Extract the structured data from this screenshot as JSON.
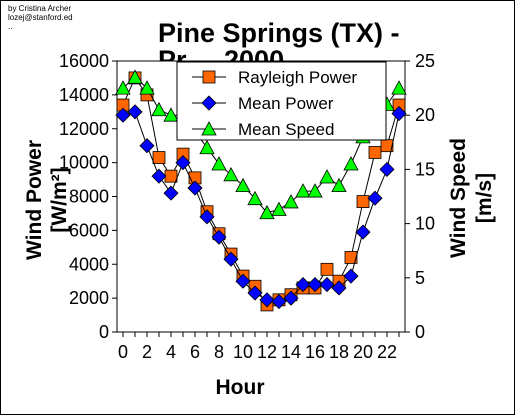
{
  "credit": {
    "line1": "by Cristina Archer",
    "line2": "lozej@stanford.ed",
    "line3": ".."
  },
  "chart_data": {
    "type": "line",
    "title": "Pine Springs (TX) - ",
    "title_overlapped": "Pr ... 2000",
    "xlabel": "Hour",
    "ylabel_left_line1": "Wind Power",
    "ylabel_left_line2": "[W/m²]",
    "ylabel_right_line1": "Wind Speed",
    "ylabel_right_line2": "[m/s]",
    "x": [
      0,
      1,
      2,
      3,
      4,
      5,
      6,
      7,
      8,
      9,
      10,
      11,
      12,
      13,
      14,
      15,
      16,
      17,
      18,
      19,
      20,
      21,
      22,
      23
    ],
    "x_ticks": [
      0,
      2,
      4,
      6,
      8,
      10,
      12,
      14,
      16,
      18,
      20,
      22
    ],
    "ylim_left": [
      0,
      16000
    ],
    "yticks_left": [
      0,
      2000,
      4000,
      6000,
      8000,
      10000,
      12000,
      14000,
      16000
    ],
    "ylim_right": [
      0,
      25
    ],
    "yticks_right": [
      0,
      5,
      10,
      15,
      20,
      25
    ],
    "grid": false,
    "legend_position": "top-center",
    "series": [
      {
        "name": "Rayleigh Power",
        "axis": "left",
        "marker": "square",
        "color": "#ff6600",
        "values": [
          13400,
          15000,
          14000,
          10300,
          9200,
          10500,
          9100,
          7100,
          5800,
          4600,
          3300,
          2700,
          1600,
          1900,
          2200,
          2600,
          2600,
          3700,
          3000,
          4400,
          7700,
          10600,
          11000,
          13400
        ]
      },
      {
        "name": "Mean Power",
        "axis": "left",
        "marker": "diamond",
        "color": "#0000ff",
        "values": [
          12800,
          13000,
          11000,
          9200,
          8200,
          10000,
          8500,
          6800,
          5600,
          4300,
          3000,
          2300,
          1900,
          1800,
          2000,
          2800,
          2800,
          2800,
          2600,
          3300,
          5900,
          7900,
          9600,
          12900
        ]
      },
      {
        "name": "Mean Speed",
        "axis": "right",
        "marker": "triangle",
        "color": "#00ff00",
        "values": [
          22.5,
          23.5,
          22.5,
          20.5,
          20.0,
          20.0,
          18.5,
          17.0,
          15.5,
          14.5,
          13.5,
          12.3,
          11.0,
          11.3,
          12.0,
          13.0,
          13.0,
          14.3,
          13.5,
          15.5,
          18.0,
          19.0,
          21.0,
          22.5
        ]
      }
    ]
  }
}
